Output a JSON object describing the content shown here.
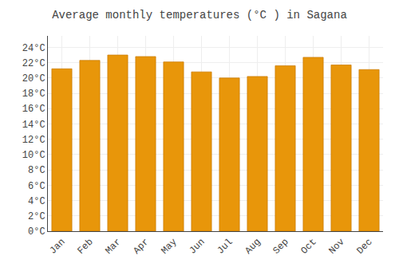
{
  "chart_data": {
    "type": "bar",
    "title": "Average monthly temperatures (°C ) in Sagana",
    "categories": [
      "Jan",
      "Feb",
      "Mar",
      "Apr",
      "May",
      "Jun",
      "Jul",
      "Aug",
      "Sep",
      "Oct",
      "Nov",
      "Dec"
    ],
    "values": [
      21.2,
      22.3,
      23.0,
      22.8,
      22.1,
      20.8,
      20.0,
      20.2,
      21.6,
      22.7,
      21.7,
      21.1
    ],
    "color": "#E8960A",
    "ylim": [
      0,
      25.5
    ],
    "yticks": [
      {
        "value": 0,
        "label": "0°C"
      },
      {
        "value": 2,
        "label": "2°C"
      },
      {
        "value": 4,
        "label": "4°C"
      },
      {
        "value": 6,
        "label": "6°C"
      },
      {
        "value": 8,
        "label": "8°C"
      },
      {
        "value": 10,
        "label": "10°C"
      },
      {
        "value": 12,
        "label": "12°C"
      },
      {
        "value": 14,
        "label": "14°C"
      },
      {
        "value": 16,
        "label": "16°C"
      },
      {
        "value": 18,
        "label": "18°C"
      },
      {
        "value": 20,
        "label": "20°C"
      },
      {
        "value": 22,
        "label": "22°C"
      },
      {
        "value": 24,
        "label": "24°C"
      }
    ],
    "grid": true
  }
}
